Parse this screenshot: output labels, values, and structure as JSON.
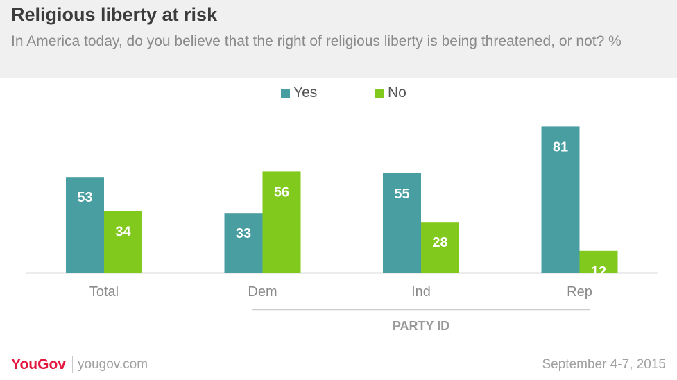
{
  "header": {
    "title": "Religious liberty at risk",
    "subtitle": "In America today, do you believe that the right of religious liberty is being threatened, or not? %"
  },
  "footer": {
    "logo": "YouGov",
    "url": "yougov.com",
    "date": "September 4-7, 2015"
  },
  "colors": {
    "yes": "#489ea0",
    "no": "#82c91e"
  },
  "chart_data": {
    "type": "bar",
    "categories": [
      "Total",
      "Dem",
      "Ind",
      "Rep"
    ],
    "series": [
      {
        "name": "Yes",
        "values": [
          53,
          33,
          55,
          81
        ]
      },
      {
        "name": "No",
        "values": [
          34,
          56,
          28,
          12
        ]
      }
    ],
    "group_label": "PARTY ID",
    "legend_position": "top-center",
    "ylim": [
      0,
      100
    ],
    "grid": false
  }
}
